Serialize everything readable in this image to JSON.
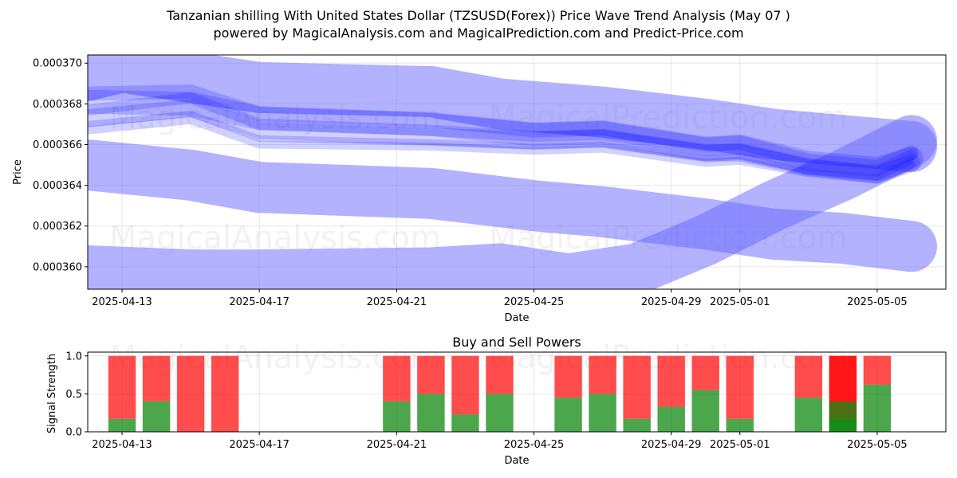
{
  "figure": {
    "title_line1": "Tanzanian shilling With United States Dollar (TZSUSD(Forex)) Price Wave Trend Analysis (May 07 )",
    "title_line2": "powered by MagicalAnalysis.com and MagicalPrediction.com and Predict-Price.com",
    "watermarks": [
      "MagicalAnalysis.com",
      "MagicalPrediction.com"
    ]
  },
  "chart_data": [
    {
      "type": "line",
      "title": "",
      "xlabel": "Date",
      "ylabel": "Price",
      "ylim": [
        0.0003589,
        0.0003704
      ],
      "xlim": [
        "2025-04-12",
        "2025-05-07"
      ],
      "grid": true,
      "x_ticks": [
        "2025-04-13",
        "2025-04-17",
        "2025-04-21",
        "2025-04-25",
        "2025-04-29",
        "2025-05-01",
        "2025-05-05"
      ],
      "y_ticks": [
        "0.000360",
        "0.000362",
        "0.000364",
        "0.000366",
        "0.000368",
        "0.000370"
      ],
      "series_color": "#0000ff",
      "wide_bands": [
        {
          "name": "upper-band",
          "x": [
            "2025-04-12",
            "2025-04-13",
            "2025-04-15",
            "2025-04-17",
            "2025-04-22",
            "2025-04-24",
            "2025-04-27",
            "2025-04-30",
            "2025-05-02",
            "2025-05-04",
            "2025-05-06"
          ],
          "values": [
            0.0003694,
            0.0003698,
            0.0003693,
            0.0003688,
            0.0003686,
            0.000368,
            0.0003676,
            0.000367,
            0.0003665,
            0.0003662,
            0.0003659
          ]
        },
        {
          "name": "middle-band",
          "x": [
            "2025-04-12",
            "2025-04-15",
            "2025-04-17",
            "2025-04-22",
            "2025-04-25",
            "2025-04-27",
            "2025-04-30",
            "2025-05-02",
            "2025-05-04",
            "2025-05-06"
          ],
          "values": [
            0.000365,
            0.0003645,
            0.0003639,
            0.0003636,
            0.000363,
            0.0003627,
            0.0003621,
            0.0003616,
            0.0003614,
            0.000361
          ]
        },
        {
          "name": "lower-band",
          "x": [
            "2025-04-12",
            "2025-04-15",
            "2025-04-17",
            "2025-04-22",
            "2025-04-24",
            "2025-04-26",
            "2025-04-28",
            "2025-04-30",
            "2025-05-02",
            "2025-05-04",
            "2025-05-06"
          ],
          "values": [
            0.0003598,
            0.0003596,
            0.0003596,
            0.0003597,
            0.0003599,
            0.0003594,
            0.0003599,
            0.0003613,
            0.000363,
            0.0003645,
            0.0003662
          ]
        }
      ],
      "wave_lines": [
        {
          "x": [
            "2025-04-12",
            "2025-04-15",
            "2025-04-17",
            "2025-04-22",
            "2025-04-25",
            "2025-04-27",
            "2025-04-30",
            "2025-05-01",
            "2025-05-03",
            "2025-05-05",
            "2025-05-06"
          ],
          "values": [
            0.0003681,
            0.000368,
            0.0003673,
            0.000367,
            0.0003665,
            0.0003666,
            0.0003658,
            0.0003659,
            0.0003651,
            0.0003648,
            0.0003653
          ]
        },
        {
          "x": [
            "2025-04-12",
            "2025-04-15",
            "2025-04-17",
            "2025-04-22",
            "2025-04-25",
            "2025-04-27",
            "2025-04-30",
            "2025-05-01",
            "2025-05-03",
            "2025-05-05",
            "2025-05-06"
          ],
          "values": [
            0.0003673,
            0.0003678,
            0.0003667,
            0.0003664,
            0.0003662,
            0.0003663,
            0.0003656,
            0.0003656,
            0.0003649,
            0.0003645,
            0.0003651
          ]
        },
        {
          "x": [
            "2025-04-12",
            "2025-04-15",
            "2025-04-17",
            "2025-04-22",
            "2025-04-25",
            "2025-04-27",
            "2025-04-30",
            "2025-05-01",
            "2025-05-03",
            "2025-05-05",
            "2025-05-06"
          ],
          "values": [
            0.0003677,
            0.0003683,
            0.000367,
            0.0003667,
            0.0003664,
            0.0003665,
            0.0003657,
            0.0003658,
            0.000365,
            0.0003647,
            0.0003655
          ]
        },
        {
          "x": [
            "2025-04-12",
            "2025-04-15",
            "2025-04-17",
            "2025-04-22",
            "2025-04-25",
            "2025-04-27",
            "2025-04-30",
            "2025-05-01",
            "2025-05-03",
            "2025-05-05",
            "2025-05-06"
          ],
          "values": [
            0.000367,
            0.0003675,
            0.0003663,
            0.0003661,
            0.0003659,
            0.000366,
            0.0003653,
            0.0003654,
            0.0003647,
            0.0003644,
            0.0003652
          ]
        },
        {
          "x": [
            "2025-04-12",
            "2025-04-15",
            "2025-04-17",
            "2025-04-22",
            "2025-04-25",
            "2025-04-27",
            "2025-04-30",
            "2025-05-01",
            "2025-05-03",
            "2025-05-05",
            "2025-05-06"
          ],
          "values": [
            0.0003685,
            0.0003686,
            0.0003675,
            0.0003672,
            0.0003667,
            0.0003668,
            0.000366,
            0.0003661,
            0.0003652,
            0.0003649,
            0.0003656
          ]
        },
        {
          "x": [
            "2025-04-12",
            "2025-04-15",
            "2025-04-17",
            "2025-04-22",
            "2025-04-25",
            "2025-04-27",
            "2025-04-30",
            "2025-05-01",
            "2025-05-03",
            "2025-05-05",
            "2025-05-06"
          ],
          "values": [
            0.0003667,
            0.0003672,
            0.000366,
            0.0003659,
            0.0003657,
            0.0003658,
            0.0003651,
            0.0003652,
            0.0003646,
            0.0003643,
            0.000365
          ]
        }
      ]
    },
    {
      "type": "bar",
      "title": "Buy and Sell Powers",
      "xlabel": "Date",
      "ylabel": "Signal Strength",
      "ylim": [
        0,
        1.05
      ],
      "xlim": [
        "2025-04-12",
        "2025-05-07"
      ],
      "grid": true,
      "x_ticks": [
        "2025-04-13",
        "2025-04-17",
        "2025-04-21",
        "2025-04-25",
        "2025-04-29",
        "2025-05-01",
        "2025-05-05"
      ],
      "y_ticks": [
        "0.0",
        "0.5",
        "1.0"
      ],
      "buy_color": "#008000",
      "sell_color": "#ff0000",
      "categories": [
        "2025-04-13",
        "2025-04-14",
        "2025-04-15",
        "2025-04-16",
        "2025-04-21",
        "2025-04-22",
        "2025-04-23",
        "2025-04-24",
        "2025-04-26",
        "2025-04-27",
        "2025-04-28",
        "2025-04-29",
        "2025-04-30",
        "2025-05-01",
        "2025-05-03",
        "2025-05-04",
        "2025-05-04",
        "2025-05-05"
      ],
      "series": [
        {
          "name": "Buy",
          "values": [
            0.17,
            0.4,
            0.0,
            0.0,
            0.4,
            0.5,
            0.23,
            0.5,
            0.45,
            0.5,
            0.17,
            0.33,
            0.55,
            0.17,
            0.45,
            0.17,
            0.4,
            0.62
          ]
        },
        {
          "name": "Sell",
          "values": [
            0.83,
            0.6,
            1.0,
            1.0,
            0.6,
            0.5,
            0.77,
            0.5,
            0.55,
            0.5,
            0.83,
            0.67,
            0.45,
            0.83,
            0.55,
            0.83,
            0.6,
            0.38
          ]
        }
      ]
    }
  ]
}
